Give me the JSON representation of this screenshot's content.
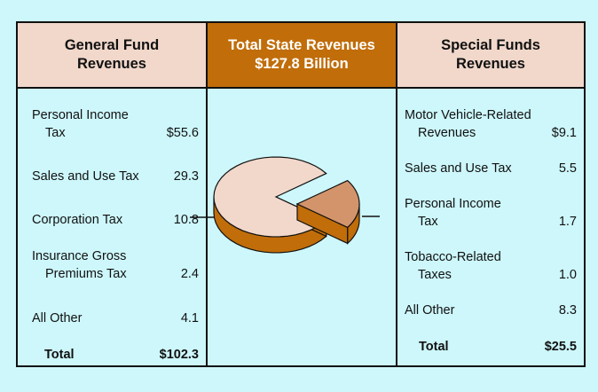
{
  "colors": {
    "background": "#cdf7fb",
    "header_fill": "#f1d8cb",
    "center_header_fill": "#c06d0a",
    "pie_top": "#f1d8cb",
    "pie_side": "#c06d0a",
    "slice_top": "#d3946c"
  },
  "headers": {
    "left": [
      "General Fund",
      "Revenues"
    ],
    "middle": [
      "Total State Revenues",
      "$127.8 Billion"
    ],
    "right": [
      "Special Funds",
      "Revenues"
    ]
  },
  "general_fund": [
    {
      "label": [
        "Personal Income",
        "Tax"
      ],
      "value": "$55.6"
    },
    {
      "label": [
        "Sales and Use Tax"
      ],
      "value": "29.3"
    },
    {
      "label": [
        "Corporation Tax"
      ],
      "value": "10.8"
    },
    {
      "label": [
        "Insurance Gross",
        "Premiums Tax"
      ],
      "value": "2.4"
    },
    {
      "label": [
        "All Other"
      ],
      "value": "4.1"
    }
  ],
  "general_total": {
    "label": "Total",
    "value": "$102.3"
  },
  "special_funds": [
    {
      "label": [
        "Motor Vehicle-Related",
        "Revenues"
      ],
      "value": "$9.1"
    },
    {
      "label": [
        "Sales and Use Tax"
      ],
      "value": "5.5"
    },
    {
      "label": [
        "Personal Income",
        "Tax"
      ],
      "value": "1.7"
    },
    {
      "label": [
        "Tobacco-Related",
        "Taxes"
      ],
      "value": "1.0"
    },
    {
      "label": [
        "All Other"
      ],
      "value": "8.3"
    }
  ],
  "special_total": {
    "label": "Total",
    "value": "$25.5"
  },
  "chart_data": {
    "type": "pie",
    "title": "Total State Revenues $127.8 Billion",
    "unit": "$ billions",
    "categories": [
      "General Fund Revenues",
      "Special Funds Revenues"
    ],
    "values": [
      102.3,
      25.5
    ],
    "exploded": "Special Funds Revenues"
  }
}
